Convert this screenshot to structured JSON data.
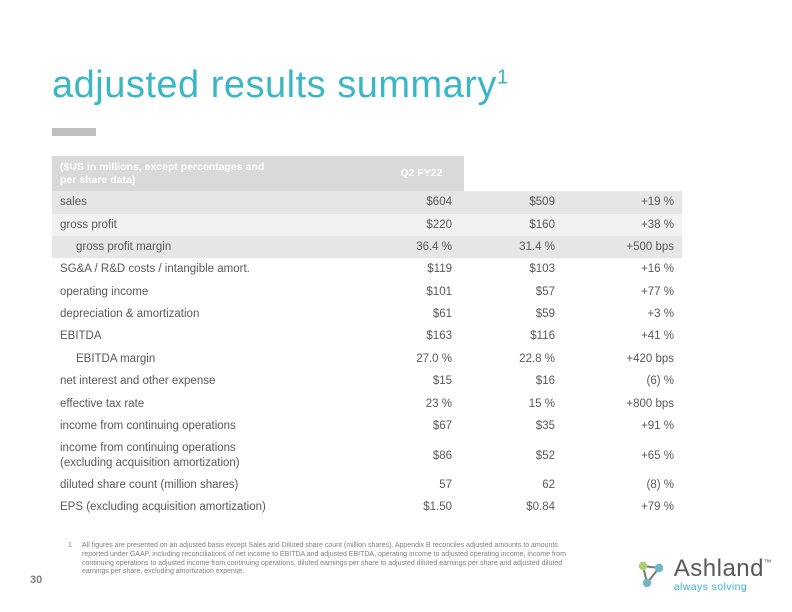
{
  "title": {
    "text": "adjusted results summary",
    "sup": "1",
    "color": "#3bb6c5",
    "fontsize": 38
  },
  "table": {
    "header": {
      "label_html": "($US in millions, except percentages and<br>per share data)",
      "period": "Q2 FY22"
    },
    "rows": [
      {
        "label": "sales",
        "c1": "$604",
        "c2": "$509",
        "c3": "+19 %",
        "shade": "shaded"
      },
      {
        "label": "gross profit",
        "c1": "$220",
        "c2": "$160",
        "c3": "+38 %",
        "shade": "shaded-light"
      },
      {
        "label": "gross profit margin",
        "c1": "36.4 %",
        "c2": "31.4 %",
        "c3": "+500 bps",
        "shade": "shaded",
        "indent": true
      },
      {
        "label": "SG&A / R&D costs / intangible amort.",
        "c1": "$119",
        "c2": "$103",
        "c3": "+16 %"
      },
      {
        "label": "operating income",
        "c1": "$101",
        "c2": "$57",
        "c3": "+77 %"
      },
      {
        "label": "depreciation & amortization",
        "c1": "$61",
        "c2": "$59",
        "c3": "+3 %"
      },
      {
        "label": "EBITDA",
        "c1": "$163",
        "c2": "$116",
        "c3": "+41 %"
      },
      {
        "label": "EBITDA margin",
        "c1": "27.0 %",
        "c2": "22.8 %",
        "c3": "+420 bps",
        "indent": true
      },
      {
        "label": "net interest and other expense",
        "c1": "$15",
        "c2": "$16",
        "c3": "(6) %"
      },
      {
        "label": "effective tax rate",
        "c1": "23 %",
        "c2": "15 %",
        "c3": "+800 bps"
      },
      {
        "label": "income from continuing operations",
        "c1": "$67",
        "c2": "$35",
        "c3": "+91 %"
      },
      {
        "label": "income from continuing operations\n(excluding acquisition amortization)",
        "c1": "$86",
        "c2": "$52",
        "c3": "+65 %",
        "tall": true
      },
      {
        "label": "diluted share count (million shares)",
        "c1": "57",
        "c2": "62",
        "c3": "(8) %"
      },
      {
        "label": "EPS (excluding acquisition amortization)",
        "c1": "$1.50",
        "c2": "$0.84",
        "c3": "+79 %"
      }
    ]
  },
  "footnote": {
    "num": "1",
    "text": "All figures are presented on an adjusted basis except Sales and Diluted share count (million shares). Appendix B reconciles adjusted amounts to amounts reported under GAAP, including reconciliations of net income to EBITDA and adjusted EBITDA, operating income to adjusted operating income, income from continuing operations to adjusted income from continuing operations, diluted earnings per share to adjusted diluted earnings per share and adjusted diluted earnings per share, excluding amortization expense."
  },
  "page_number": "30",
  "logo": {
    "name": "Ashland",
    "tm": "™",
    "tagline": "always solving",
    "tagline_color": "#3bb6c5"
  }
}
